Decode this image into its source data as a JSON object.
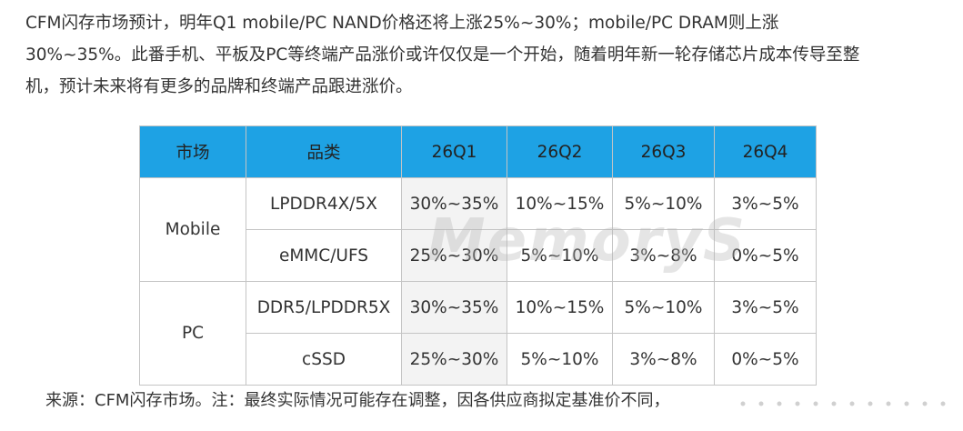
{
  "paragraph": {
    "lines": [
      "CFM闪存市场预计，明年Q1 mobile/PC NAND价格还将上涨25%~30%；mobile/PC DRAM则上涨",
      "30%~35%。此番手机、平板及PC等终端产品涨价或许仅仅是一个开始，随着明年新一轮存储芯片成本传导至整",
      "机，预计未来将有更多的品牌和终端产品跟进涨价。"
    ]
  },
  "table": {
    "header": [
      "市场",
      "品类",
      "26Q1",
      "26Q2",
      "26Q3",
      "26Q4"
    ],
    "groups": [
      {
        "market": "Mobile",
        "rows": [
          [
            "LPDDR4X/5X",
            "30%~35%",
            "10%~15%",
            "5%~10%",
            "3%~5%"
          ],
          [
            "eMMC/UFS",
            "25%~30%",
            "5%~10%",
            "3%~8%",
            "0%~5%"
          ]
        ]
      },
      {
        "market": "PC",
        "rows": [
          [
            "DDR5/LPDDR5X",
            "30%~35%",
            "10%~15%",
            "5%~10%",
            "3%~5%"
          ],
          [
            "cSSD",
            "25%~30%",
            "5%~10%",
            "3%~8%",
            "0%~5%"
          ]
        ]
      }
    ],
    "watermark": "MemoryS"
  },
  "footer": {
    "text": "来源：CFM闪存市场。注：最终实际情况可能存在调整，因各供应商拟定基准价不同，"
  }
}
